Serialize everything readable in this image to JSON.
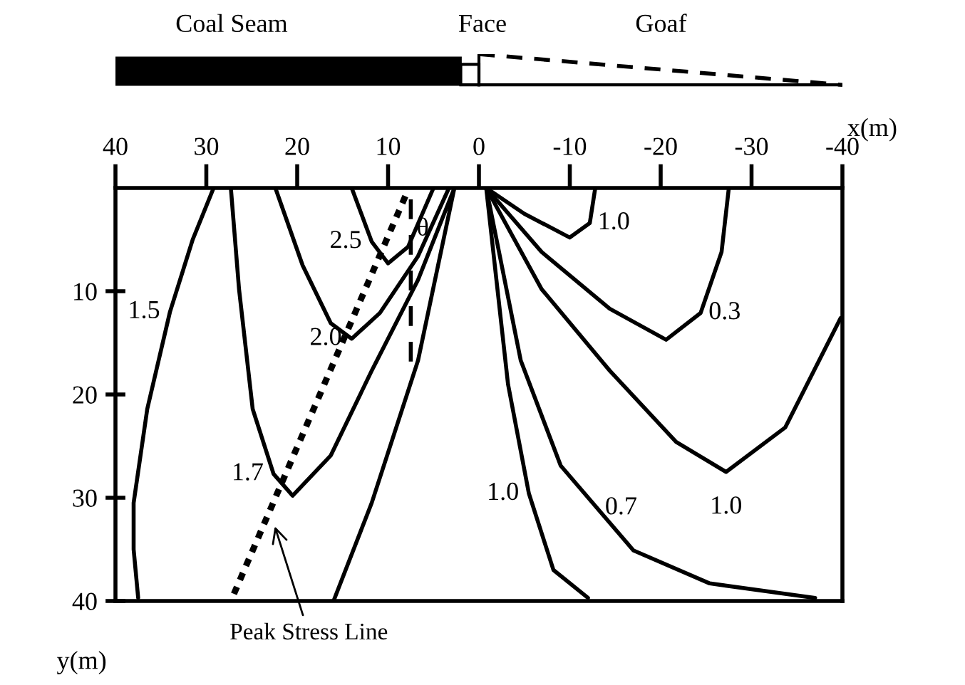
{
  "chart_data": {
    "type": "line",
    "xlabel": "x(m)",
    "ylabel": "y(m)",
    "xlim": [
      40,
      -40
    ],
    "xticks": [
      40,
      30,
      20,
      10,
      0,
      -10,
      -20,
      -30,
      -40
    ],
    "ylim": [
      40,
      0
    ],
    "yticks": [
      10,
      20,
      30,
      40
    ],
    "series": [
      {
        "color": "#000000",
        "x": [
          29.2,
          31.5,
          34,
          36.5,
          38,
          38,
          37.5
        ],
        "values": [
          0,
          5,
          12,
          21.4,
          30.5,
          35,
          39.7
        ]
      },
      {
        "color": "#000000",
        "x": [
          27.3,
          26.4,
          24.9,
          22.6,
          20.5,
          16.3,
          11.8,
          6.7,
          2.7
        ],
        "values": [
          0,
          9.8,
          21.4,
          27.7,
          29.8,
          25.9,
          17.7,
          8.9,
          0
        ]
      },
      {
        "color": "#000000",
        "x": [
          22.4,
          19.4,
          16.3,
          14,
          10.9,
          6.7,
          3.3
        ],
        "values": [
          0,
          7.5,
          13.1,
          14.6,
          12.1,
          6.6,
          0
        ]
      },
      {
        "color": "#000000",
        "x": [
          14,
          11.8,
          10,
          7.8,
          5
        ],
        "values": [
          0,
          5.2,
          7.3,
          5.7,
          0
        ]
      },
      {
        "color": "#000000",
        "x": [
          2.7,
          6.7,
          11.8,
          16
        ],
        "values": [
          0,
          16.7,
          30.5,
          40
        ]
      },
      {
        "color": "#000000",
        "x": [
          -0.8,
          -5,
          -10,
          -12.2,
          -12.8
        ],
        "values": [
          0,
          2.5,
          4.8,
          3.4,
          0
        ]
      },
      {
        "color": "#000000",
        "x": [
          -0.8,
          -6.9,
          -14.4,
          -20.6,
          -24.4,
          -26.7,
          -27.5
        ],
        "values": [
          0,
          6.2,
          11.7,
          14.7,
          12.1,
          6.2,
          0
        ]
      },
      {
        "color": "#000000",
        "x": [
          -0.8,
          -6.9,
          -14.4,
          -21.7,
          -27.2,
          -33.7,
          -39.8
        ],
        "values": [
          0,
          9.8,
          17.7,
          24.6,
          27.5,
          23.2,
          12.6
        ]
      },
      {
        "color": "#000000",
        "x": [
          -0.8,
          -4.6,
          -9,
          -17,
          -25.4,
          -37
        ],
        "values": [
          0,
          16.7,
          26.9,
          35.1,
          38.3,
          39.7
        ]
      },
      {
        "color": "#000000",
        "x": [
          -0.8,
          -3.2,
          -5.5,
          -8.2,
          -12
        ],
        "values": [
          0,
          19,
          29.6,
          37,
          39.7
        ]
      },
      {
        "color": "#000000",
        "line_style": "dotted",
        "x": [
          8.1,
          27.3
        ],
        "values": [
          0.8,
          40
        ]
      },
      {
        "color": "#000000",
        "line_style": "dashed",
        "x": [
          7.5,
          7.5
        ],
        "values": [
          1.1,
          17.2
        ]
      }
    ],
    "annotations": [
      "Coal Seam",
      "Face",
      "Goaf",
      {
        "text": "1.5",
        "x": 34,
        "y": 12
      },
      {
        "text": "1.7",
        "x": 22.6,
        "y": 27.7
      },
      {
        "text": "2.0",
        "x": 14,
        "y": 14.6
      },
      {
        "text": "2.5",
        "x": 11.8,
        "y": 5.2
      },
      {
        "text": "θ",
        "x": 7.5,
        "y": 4
      },
      {
        "text": "1.0",
        "x": -12.2,
        "y": 3.4
      },
      {
        "text": "0.3",
        "x": -24.4,
        "y": 12.1
      },
      {
        "text": "1.0",
        "x": -27.2,
        "y": 27.5
      },
      {
        "text": "0.7",
        "x": -13,
        "y": 31
      },
      {
        "text": "1.0",
        "x": -5.5,
        "y": 29.6
      },
      {
        "text": "Peak Stress Line",
        "x": 22.6,
        "y": 32.4
      }
    ]
  }
}
